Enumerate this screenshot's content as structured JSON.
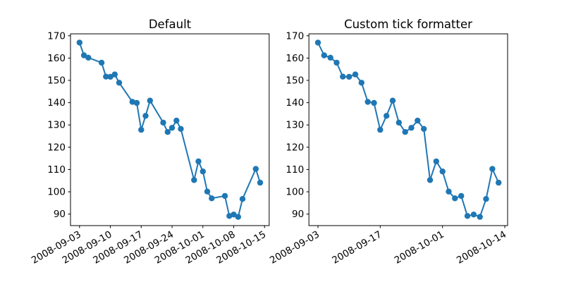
{
  "figure": {
    "background_color": "#ffffff",
    "line_color": "#1f77b4",
    "frame_color": "#000000",
    "text_color": "#000000"
  },
  "chart_data": [
    {
      "type": "line",
      "title": "Default",
      "marker": "circle",
      "grid": false,
      "legend": null,
      "dates": [
        "2008-09-03",
        "2008-09-04",
        "2008-09-05",
        "2008-09-08",
        "2008-09-09",
        "2008-09-10",
        "2008-09-11",
        "2008-09-12",
        "2008-09-15",
        "2008-09-16",
        "2008-09-17",
        "2008-09-18",
        "2008-09-19",
        "2008-09-22",
        "2008-09-23",
        "2008-09-24",
        "2008-09-25",
        "2008-09-26",
        "2008-09-29",
        "2008-09-30",
        "2008-10-01",
        "2008-10-02",
        "2008-10-03",
        "2008-10-06",
        "2008-10-07",
        "2008-10-08",
        "2008-10-09",
        "2008-10-10",
        "2008-10-13",
        "2008-10-14"
      ],
      "values": [
        166.96,
        161.22,
        160.18,
        157.92,
        151.68,
        151.61,
        152.65,
        148.94,
        140.36,
        139.88,
        127.83,
        134.09,
        140.91,
        131.05,
        126.84,
        128.71,
        131.93,
        128.24,
        105.26,
        113.66,
        109.12,
        100.1,
        97.07,
        98.14,
        89.16,
        89.79,
        88.74,
        96.8,
        110.26,
        104.08
      ],
      "x_axis": {
        "mode": "date",
        "tick_labels": [
          "2008-09-03",
          "2008-09-10",
          "2008-09-17",
          "2008-09-24",
          "2008-10-01",
          "2008-10-08",
          "2008-10-15"
        ],
        "lim_days": [
          -2.05,
          43.05
        ],
        "tick_rotation_deg": 30
      },
      "y_axis": {
        "ticks": [
          90,
          100,
          110,
          120,
          130,
          140,
          150,
          160,
          170
        ],
        "lim": [
          84.83,
          170.87
        ]
      }
    },
    {
      "type": "line",
      "title": "Custom tick formatter",
      "marker": "circle",
      "grid": false,
      "legend": null,
      "dates": [
        "2008-09-03",
        "2008-09-04",
        "2008-09-05",
        "2008-09-08",
        "2008-09-09",
        "2008-09-10",
        "2008-09-11",
        "2008-09-12",
        "2008-09-15",
        "2008-09-16",
        "2008-09-17",
        "2008-09-18",
        "2008-09-19",
        "2008-09-22",
        "2008-09-23",
        "2008-09-24",
        "2008-09-25",
        "2008-09-26",
        "2008-09-29",
        "2008-09-30",
        "2008-10-01",
        "2008-10-02",
        "2008-10-03",
        "2008-10-06",
        "2008-10-07",
        "2008-10-08",
        "2008-10-09",
        "2008-10-10",
        "2008-10-13",
        "2008-10-14"
      ],
      "values": [
        166.96,
        161.22,
        160.18,
        157.92,
        151.68,
        151.61,
        152.65,
        148.94,
        140.36,
        139.88,
        127.83,
        134.09,
        140.91,
        131.05,
        126.84,
        128.71,
        131.93,
        128.24,
        105.26,
        113.66,
        109.12,
        100.1,
        97.07,
        98.14,
        89.16,
        89.79,
        88.74,
        96.8,
        110.26,
        104.08
      ],
      "x_axis": {
        "mode": "index",
        "tick_positions": [
          0,
          10,
          20,
          30
        ],
        "tick_labels": [
          "2008-09-03",
          "2008-09-17",
          "2008-10-01",
          "2008-10-14"
        ],
        "lim": [
          -1.45,
          30.45
        ],
        "tick_rotation_deg": 30
      },
      "y_axis": {
        "ticks": [
          90,
          100,
          110,
          120,
          130,
          140,
          150,
          160,
          170
        ],
        "lim": [
          84.83,
          170.87
        ]
      }
    }
  ]
}
